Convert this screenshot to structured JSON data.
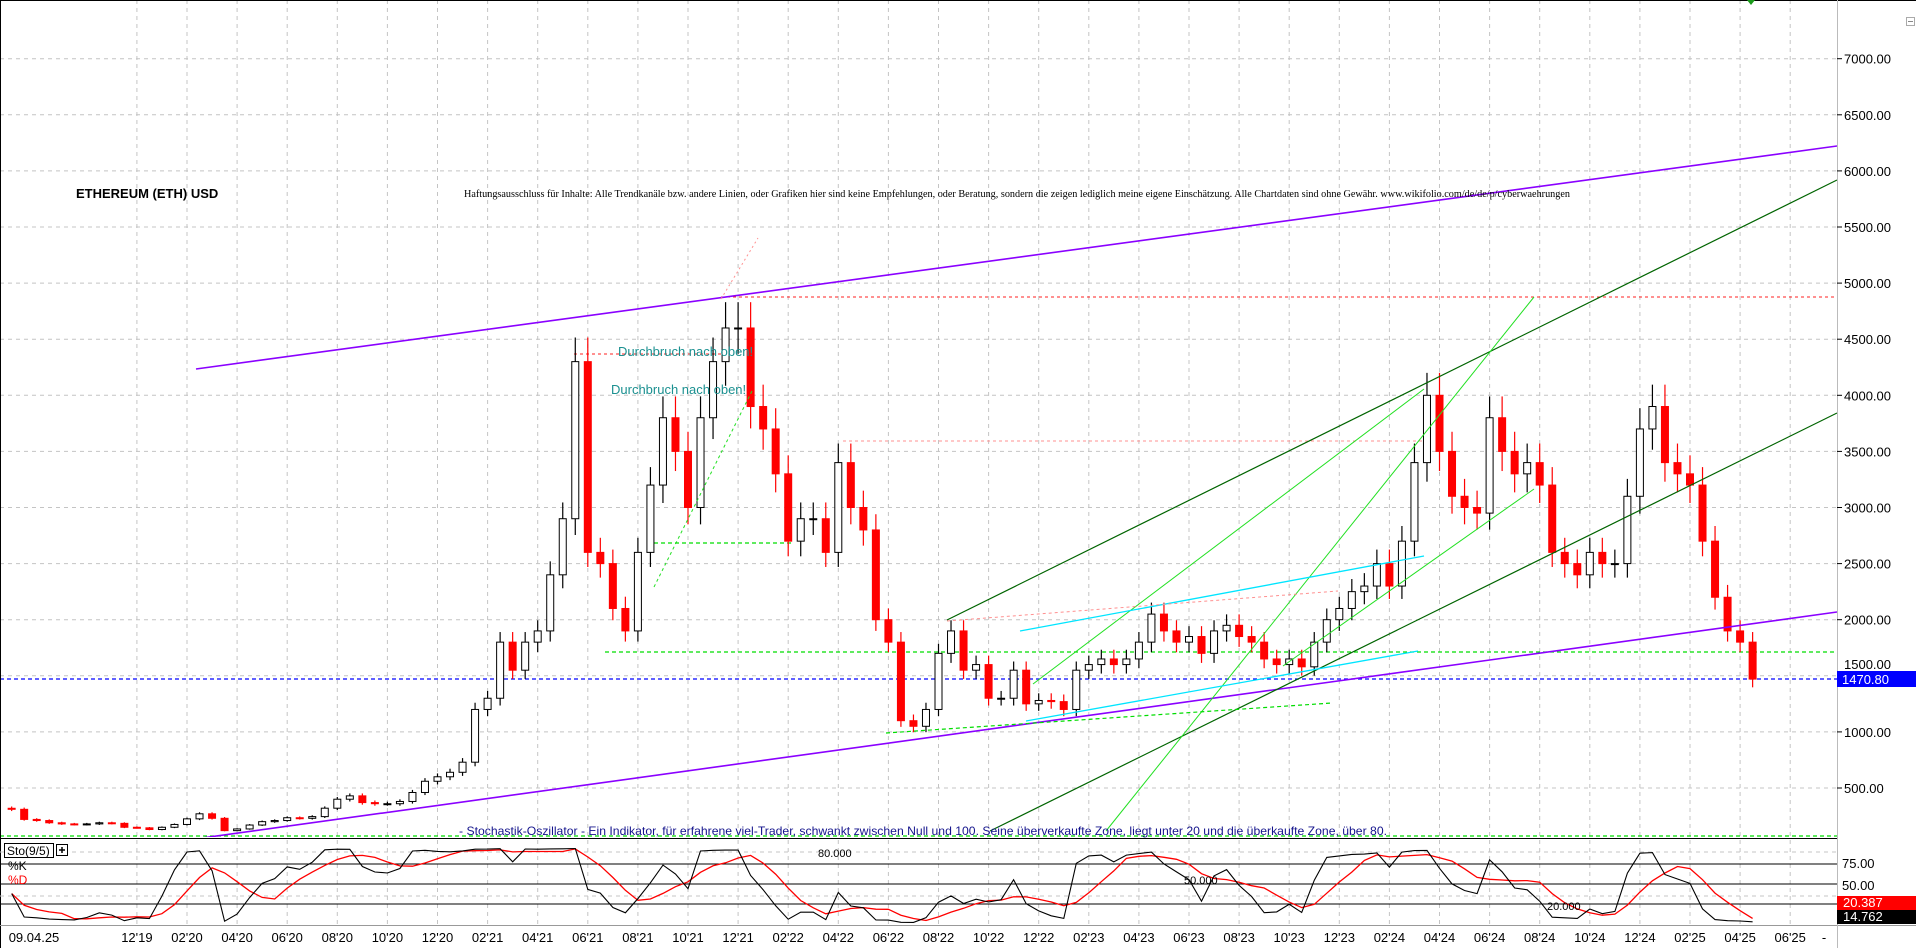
{
  "header": {
    "symbol_title": "ETHEREUM (ETH) USD",
    "disclaimer": "Haftungsausschluss für Inhalte: Alle Trendkanäle bzw. andere Linien, oder Grafiken hier sind keine Empfehlungen, oder Beratung, sondern die zeigen lediglich meine eigene Einschätzung. Alle Chartdaten sind ohne Gewähr.  www.wikifolio.com/de/de/p/cyberwaehrungen",
    "cursor_date": "09.04.25"
  },
  "annotations": {
    "breakout_1": "Durchbruch nach oben!",
    "breakout_2": "Durchbruch nach oben!"
  },
  "price_axis": {
    "ticks": [
      500,
      1000,
      1500,
      2000,
      2500,
      3000,
      3500,
      4000,
      4500,
      5000,
      5500,
      6000,
      6500,
      7000
    ],
    "last_price": "1470.80",
    "last_price_color": "#0000ff"
  },
  "stochastic": {
    "label": "Sto(9/5)",
    "expand_icon": "plus-box-icon",
    "k_label": "%K",
    "d_label": "%D",
    "k_color": "#000000",
    "d_color": "#ff0000",
    "description": "- Stochastik-Oszillator - Ein Indikator, für erfahrene viel-Trader, schwankt zwischen Null und 100. Seine überverkaufte Zone, liegt unter 20 und die überkaufte Zone, über 80.",
    "axis_ticks": [
      "75.00",
      "50.00"
    ],
    "level_labels": [
      "80.000",
      "50.000",
      "20.000"
    ],
    "d_value": "20.387",
    "k_value": "14.762"
  },
  "date_axis": {
    "labels": [
      "12'19",
      "02'20",
      "04'20",
      "06'20",
      "08'20",
      "10'20",
      "12'20",
      "02'21",
      "04'21",
      "06'21",
      "08'21",
      "10'21",
      "12'21",
      "02'22",
      "04'22",
      "06'22",
      "08'22",
      "10'22",
      "12'22",
      "02'23",
      "04'23",
      "06'23",
      "08'23",
      "10'23",
      "12'23",
      "02'24",
      "04'24",
      "06'24",
      "08'24",
      "10'24",
      "12'24",
      "02'25",
      "04'25",
      "06'25"
    ],
    "end_marker": "-"
  },
  "colors": {
    "up_candle": "#000000",
    "down_candle": "#ff0000",
    "channel_purple": "#8a00ff",
    "trend_dark_green": "#006400",
    "trend_light_green": "#22e022",
    "trend_cyan": "#00e5ff",
    "support_green": "#00dd00",
    "resistance_red": "#ff2020"
  },
  "chart_data": {
    "type": "candlestick",
    "title": "ETHEREUM (ETH) USD",
    "currency": "USD",
    "resolution": "semi-monthly closes (1st and 15th of each month)",
    "ylim": [
      0,
      7600
    ],
    "grid": true,
    "closes_by_month": {
      "2019-07": [
        310,
        220
      ],
      "2019-08": [
        210,
        190
      ],
      "2019-09": [
        180,
        175
      ],
      "2019-10": [
        180,
        190
      ],
      "2019-11": [
        185,
        150
      ],
      "2019-12": [
        145,
        130
      ],
      "2020-01": [
        150,
        175
      ],
      "2020-02": [
        225,
        270
      ],
      "2020-03": [
        230,
        120
      ],
      "2020-04": [
        135,
        170
      ],
      "2020-05": [
        200,
        210
      ],
      "2020-06": [
        235,
        230
      ],
      "2020-07": [
        245,
        320
      ],
      "2020-08": [
        400,
        430
      ],
      "2020-09": [
        370,
        360
      ],
      "2020-10": [
        360,
        380
      ],
      "2020-11": [
        460,
        560
      ],
      "2020-12": [
        600,
        640
      ],
      "2021-01": [
        730,
        1200
      ],
      "2021-02": [
        1300,
        1800
      ],
      "2021-03": [
        1550,
        1800
      ],
      "2021-04": [
        1900,
        2400
      ],
      "2021-05": [
        2900,
        4300
      ],
      "2021-06": [
        2600,
        2500
      ],
      "2021-07": [
        2100,
        1900
      ],
      "2021-08": [
        2600,
        3200
      ],
      "2021-09": [
        3800,
        3500
      ],
      "2021-10": [
        3000,
        3800
      ],
      "2021-11": [
        4300,
        4600
      ],
      "2021-12": [
        4600,
        3900
      ],
      "2022-01": [
        3700,
        3300
      ],
      "2022-02": [
        2700,
        2900
      ],
      "2022-03": [
        2900,
        2600
      ],
      "2022-04": [
        3400,
        3000
      ],
      "2022-05": [
        2800,
        2000
      ],
      "2022-06": [
        1800,
        1100
      ],
      "2022-07": [
        1050,
        1200
      ],
      "2022-08": [
        1700,
        1900
      ],
      "2022-09": [
        1550,
        1600
      ],
      "2022-10": [
        1300,
        1300
      ],
      "2022-11": [
        1550,
        1250
      ],
      "2022-12": [
        1280,
        1270
      ],
      "2023-01": [
        1200,
        1550
      ],
      "2023-02": [
        1600,
        1650
      ],
      "2023-03": [
        1600,
        1650
      ],
      "2023-04": [
        1800,
        2050
      ],
      "2023-05": [
        1900,
        1800
      ],
      "2023-06": [
        1850,
        1700
      ],
      "2023-07": [
        1900,
        1950
      ],
      "2023-08": [
        1850,
        1800
      ],
      "2023-09": [
        1650,
        1600
      ],
      "2023-10": [
        1650,
        1580
      ],
      "2023-11": [
        1800,
        2000
      ],
      "2023-12": [
        2100,
        2250
      ],
      "2024-01": [
        2300,
        2500
      ],
      "2024-02": [
        2300,
        2700
      ],
      "2024-03": [
        3400,
        4000
      ],
      "2024-04": [
        3500,
        3100
      ],
      "2024-05": [
        3000,
        2950
      ],
      "2024-06": [
        3800,
        3500
      ],
      "2024-07": [
        3300,
        3400
      ],
      "2024-08": [
        3200,
        2600
      ],
      "2024-09": [
        2500,
        2400
      ],
      "2024-10": [
        2600,
        2500
      ],
      "2024-11": [
        2500,
        3100
      ],
      "2024-12": [
        3700,
        3900
      ],
      "2025-01": [
        3400,
        3300
      ],
      "2025-02": [
        3200,
        2700
      ],
      "2025-03": [
        2200,
        1900
      ],
      "2025-04": [
        1800,
        1470.8
      ]
    },
    "horizontal_levels": [
      4850,
      4380,
      3600,
      2700,
      1720,
      1470.8
    ]
  }
}
